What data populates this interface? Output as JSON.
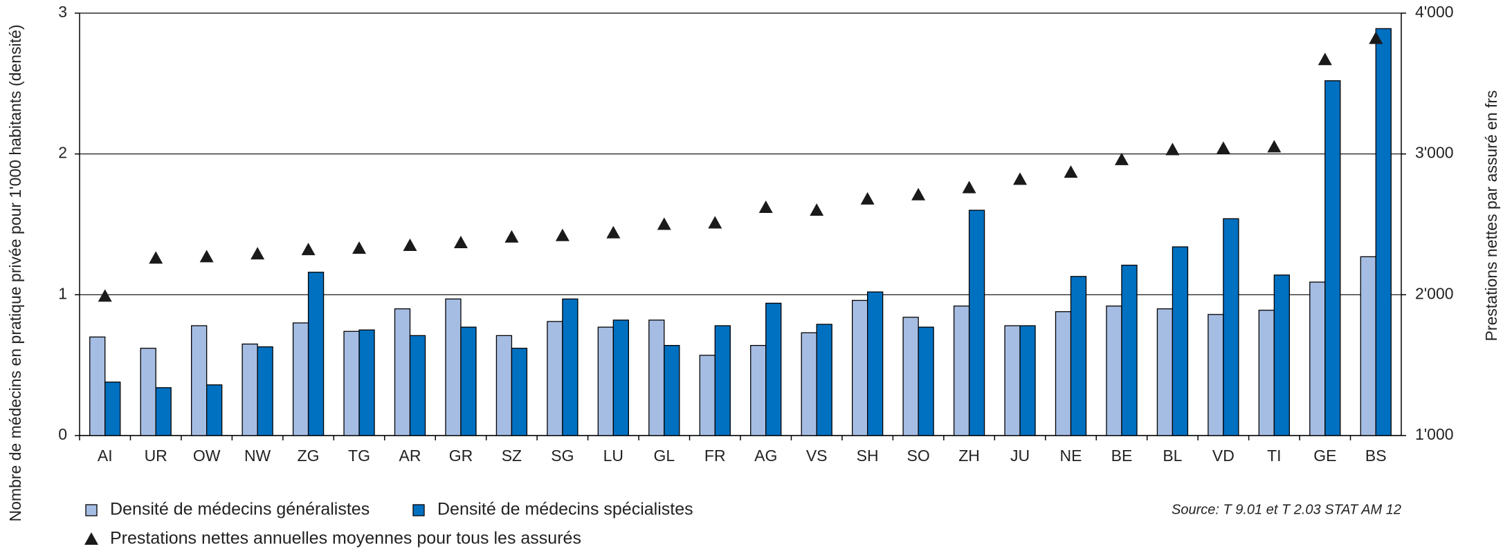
{
  "chart_data": {
    "type": "bar",
    "categories": [
      "AI",
      "UR",
      "OW",
      "NW",
      "ZG",
      "TG",
      "AR",
      "GR",
      "SZ",
      "SG",
      "LU",
      "GL",
      "FR",
      "AG",
      "VS",
      "SH",
      "SO",
      "ZH",
      "JU",
      "NE",
      "BE",
      "BL",
      "VD",
      "TI",
      "GE",
      "BS"
    ],
    "series": [
      {
        "name": "Densité de médecins généralistes",
        "color": "#a6bde3",
        "type": "bar",
        "values": [
          0.7,
          0.62,
          0.78,
          0.65,
          0.8,
          0.74,
          0.9,
          0.97,
          0.71,
          0.81,
          0.77,
          0.82,
          0.57,
          0.64,
          0.73,
          0.96,
          0.84,
          0.92,
          0.78,
          0.88,
          0.92,
          0.9,
          0.86,
          0.89,
          1.09,
          1.27
        ]
      },
      {
        "name": "Densité de médecins spécialistes",
        "color": "#0070c0",
        "type": "bar",
        "values": [
          0.38,
          0.34,
          0.36,
          0.63,
          1.16,
          0.75,
          0.71,
          0.77,
          0.62,
          0.97,
          0.82,
          0.64,
          0.78,
          0.94,
          0.79,
          1.02,
          0.77,
          1.6,
          0.78,
          1.13,
          1.21,
          1.34,
          1.54,
          1.14,
          2.52,
          2.89
        ]
      },
      {
        "name": "Prestations nettes annuelles moyennes pour tous les assurés",
        "color": "#1a1a1a",
        "type": "scatter",
        "axis": "y2",
        "values": [
          1990,
          2260,
          2270,
          2290,
          2320,
          2330,
          2350,
          2370,
          2410,
          2420,
          2440,
          2500,
          2510,
          2620,
          2600,
          2680,
          2710,
          2760,
          2820,
          2870,
          2960,
          3030,
          3040,
          3050,
          3670,
          3820
        ]
      }
    ],
    "ylabel": "Nombre de médecins en pratique privée pour 1'000 habitants (densité)",
    "y2label": "Prestations nettes par assuré en frs",
    "ylim": [
      0,
      3
    ],
    "yticks": [
      0,
      1,
      2,
      3
    ],
    "y2lim": [
      1000,
      4000
    ],
    "y2ticks": [
      {
        "value": 1000,
        "label": "1'000"
      },
      {
        "value": 2000,
        "label": "2'000"
      },
      {
        "value": 3000,
        "label": "3'000"
      },
      {
        "value": 4000,
        "label": "4'000"
      }
    ],
    "grid": true,
    "source": "Source: T 9.01 et T 2.03  STAT AM 12"
  }
}
